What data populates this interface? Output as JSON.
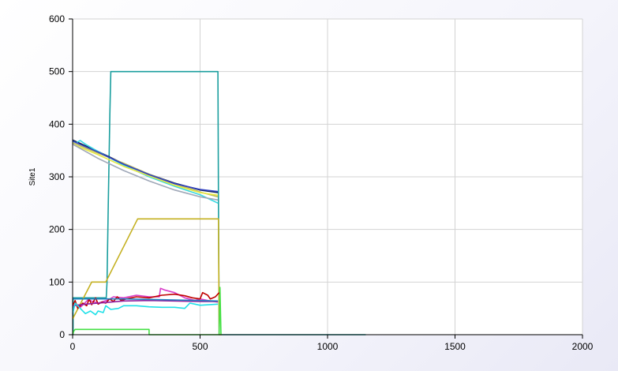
{
  "chart_data": {
    "type": "line",
    "title": "",
    "xlabel": "",
    "ylabel": "Site1",
    "xlim": [
      0,
      2000
    ],
    "ylim": [
      0,
      600
    ],
    "x_ticks": [
      "0",
      "500",
      "1000",
      "1500",
      "2000"
    ],
    "y_ticks": [
      "0",
      "100",
      "200",
      "300",
      "400",
      "500",
      "600"
    ],
    "grid": true,
    "legend": "none",
    "series": [
      {
        "color": "#1a9e9e",
        "x": [
          0,
          2,
          2,
          132,
          135,
          140,
          146,
          150,
          570,
          572,
          575,
          580,
          1150
        ],
        "y": [
          0,
          0,
          70,
          70,
          100,
          250,
          420,
          500,
          500,
          250,
          0,
          0,
          0
        ]
      },
      {
        "color": "#c4b020",
        "x": [
          0,
          75,
          130,
          255,
          572,
          575,
          585
        ],
        "y": [
          30,
          100,
          100,
          220,
          220,
          0,
          0
        ]
      },
      {
        "color": "#46e046",
        "x": [
          0,
          5,
          10,
          300,
          300,
          575,
          578,
          582
        ],
        "y": [
          0,
          7,
          10,
          10,
          0,
          0,
          90,
          0
        ]
      },
      {
        "color": "#0d1f4a",
        "x": [
          0,
          100,
          200,
          300,
          400,
          500,
          570
        ],
        "y": [
          370,
          348,
          325,
          305,
          288,
          275,
          270
        ]
      },
      {
        "color": "#38d8e0",
        "x": [
          0,
          15,
          30,
          50,
          100,
          150,
          200,
          300,
          400,
          500,
          570
        ],
        "y": [
          368,
          365,
          369,
          362,
          348,
          335,
          322,
          300,
          282,
          266,
          250
        ]
      },
      {
        "color": "#b8b860",
        "x": [
          0,
          100,
          200,
          300,
          400,
          500,
          570
        ],
        "y": [
          365,
          345,
          326,
          305,
          287,
          271,
          262
        ]
      },
      {
        "color": "#e8e840",
        "x": [
          0,
          100,
          200,
          300,
          400,
          500,
          570
        ],
        "y": [
          362,
          342,
          320,
          302,
          284,
          270,
          265
        ]
      },
      {
        "color": "#a0a8b8",
        "x": [
          0,
          100,
          200,
          300,
          400,
          500,
          570
        ],
        "y": [
          362,
          335,
          312,
          292,
          275,
          262,
          256
        ]
      },
      {
        "color": "#3040c0",
        "x": [
          0,
          100,
          200,
          300,
          400,
          500,
          570
        ],
        "y": [
          368,
          347,
          324,
          304,
          287,
          276,
          272
        ]
      },
      {
        "color": "#d83cc8",
        "x": [
          0,
          10,
          30,
          60,
          100,
          140,
          160,
          200,
          250,
          300,
          340,
          345,
          360,
          400,
          440,
          480,
          500,
          540,
          570
        ],
        "y": [
          40,
          60,
          52,
          66,
          60,
          66,
          72,
          70,
          75,
          72,
          72,
          88,
          85,
          80,
          70,
          65,
          68,
          64,
          62
        ]
      },
      {
        "color": "#c00000",
        "x": [
          0,
          10,
          20,
          40,
          55,
          65,
          75,
          90,
          100,
          115,
          130,
          145,
          160,
          175,
          190,
          210,
          250,
          300,
          350,
          400,
          440,
          470,
          500,
          510,
          530,
          540,
          560,
          575
        ],
        "y": [
          55,
          65,
          50,
          60,
          55,
          68,
          57,
          70,
          58,
          62,
          60,
          68,
          63,
          72,
          65,
          68,
          72,
          70,
          75,
          77,
          74,
          70,
          68,
          80,
          75,
          68,
          72,
          80
        ]
      },
      {
        "color": "#9020a0",
        "x": [
          0,
          50,
          100,
          150,
          200,
          300,
          400,
          500,
          570
        ],
        "y": [
          55,
          58,
          60,
          62,
          64,
          65,
          64,
          63,
          63
        ]
      },
      {
        "color": "#20e0e8",
        "x": [
          0,
          10,
          30,
          50,
          70,
          90,
          100,
          120,
          130,
          150,
          180,
          200,
          250,
          300,
          350,
          400,
          440,
          460,
          480,
          500,
          570
        ],
        "y": [
          40,
          60,
          50,
          40,
          45,
          38,
          45,
          42,
          55,
          48,
          50,
          55,
          55,
          53,
          52,
          52,
          50,
          60,
          58,
          56,
          58
        ]
      },
      {
        "color": "#2080c0",
        "x": [
          0,
          100,
          200,
          300,
          400,
          500,
          570
        ],
        "y": [
          68,
          68,
          68,
          67,
          66,
          65,
          64
        ]
      }
    ]
  }
}
